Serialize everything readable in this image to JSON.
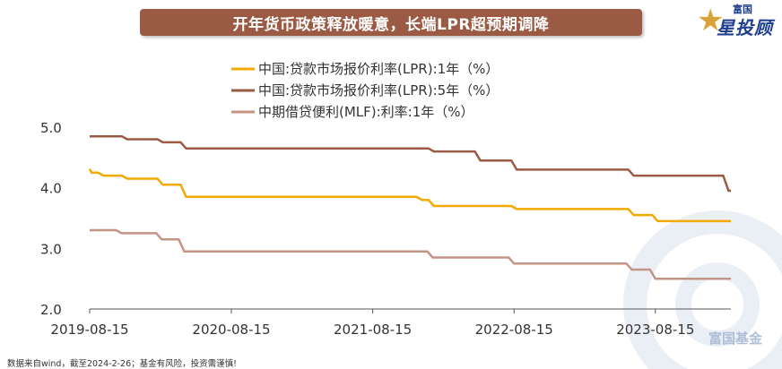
{
  "title": "开年货币政策释放暖意，长端LPR超预期调降",
  "brand": {
    "small": "富国",
    "big": "星投顾"
  },
  "watermark": "富国基金",
  "source_note": "数据来自wind，截至2024-2-26；基金有风险，投资需谨慎!",
  "colors": {
    "banner": "#9b5a43",
    "lpr1y": "#f2a900",
    "lpr5y": "#9b5a43",
    "mlf": "#c49485"
  },
  "chart_data": {
    "type": "line",
    "x_type": "date",
    "xlim": [
      "2019-08-15",
      "2024-02-26"
    ],
    "ylim": [
      2.0,
      5.0
    ],
    "yticks": [
      "5.0",
      "4.0",
      "3.0",
      "2.0"
    ],
    "yticks_values": [
      5.0,
      4.0,
      3.0,
      2.0
    ],
    "xticks": [
      "2019-08-15",
      "2020-08-15",
      "2021-08-15",
      "2022-08-15",
      "2023-08-15"
    ],
    "legend_position": "top",
    "grid": false,
    "series": [
      {
        "name": "中国:贷款市场报价利率(LPR):1年（%）",
        "color": "#f2a900",
        "points": [
          [
            "2019-08-15",
            4.31
          ],
          [
            "2019-08-20",
            4.25
          ],
          [
            "2019-09-20",
            4.2
          ],
          [
            "2019-11-20",
            4.15
          ],
          [
            "2020-02-20",
            4.05
          ],
          [
            "2020-04-20",
            3.85
          ],
          [
            "2021-12-20",
            3.8
          ],
          [
            "2022-01-20",
            3.7
          ],
          [
            "2022-08-22",
            3.65
          ],
          [
            "2023-06-20",
            3.55
          ],
          [
            "2023-08-21",
            3.45
          ],
          [
            "2024-02-26",
            3.45
          ]
        ]
      },
      {
        "name": "中国:贷款市场报价利率(LPR):5年（%）",
        "color": "#9b5a43",
        "points": [
          [
            "2019-08-15",
            4.85
          ],
          [
            "2019-11-20",
            4.8
          ],
          [
            "2020-02-20",
            4.75
          ],
          [
            "2020-04-20",
            4.65
          ],
          [
            "2022-01-20",
            4.6
          ],
          [
            "2022-05-20",
            4.45
          ],
          [
            "2022-08-22",
            4.3
          ],
          [
            "2023-06-20",
            4.2
          ],
          [
            "2024-02-01",
            4.2
          ],
          [
            "2024-02-20",
            3.95
          ],
          [
            "2024-02-26",
            3.95
          ]
        ]
      },
      {
        "name": "中期借贷便利(MLF):利率:1年（%）",
        "color": "#c49485",
        "points": [
          [
            "2019-08-15",
            3.3
          ],
          [
            "2019-11-05",
            3.25
          ],
          [
            "2020-02-17",
            3.15
          ],
          [
            "2020-04-15",
            2.95
          ],
          [
            "2022-01-17",
            2.85
          ],
          [
            "2022-08-15",
            2.75
          ],
          [
            "2023-06-15",
            2.65
          ],
          [
            "2023-08-15",
            2.5
          ],
          [
            "2024-02-26",
            2.5
          ]
        ]
      }
    ]
  }
}
